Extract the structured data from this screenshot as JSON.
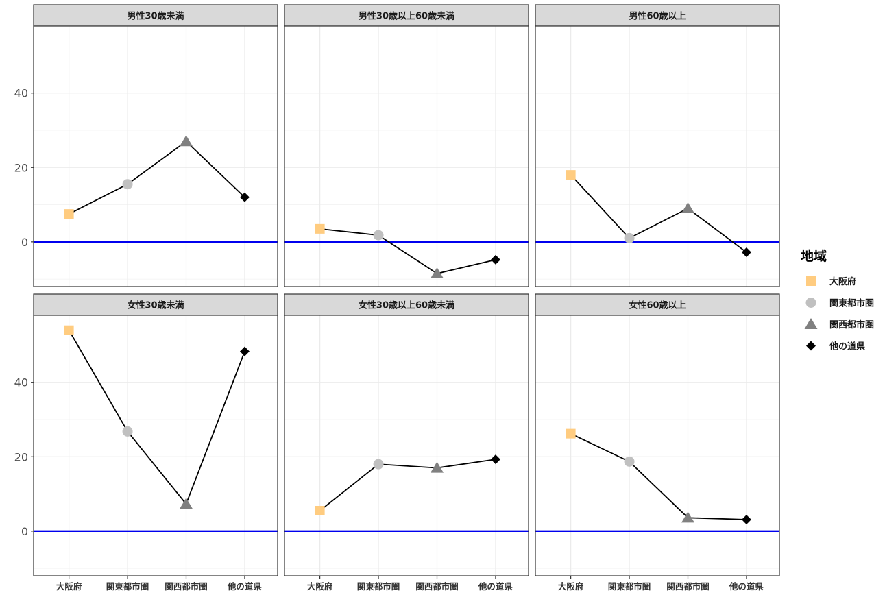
{
  "chart_data": {
    "type": "line",
    "categories": [
      "大阪府",
      "関東都市圏",
      "関西都市圏",
      "他の道県"
    ],
    "ylim": [
      -12,
      58
    ],
    "yticks": [
      0,
      20,
      40
    ],
    "reference_line": {
      "y": 0,
      "color": "#0000ee"
    },
    "grid": true,
    "legend": {
      "title": "地域",
      "placement": "right",
      "entries": [
        {
          "label": "大阪府",
          "shape": "square",
          "color": "#ffcc80"
        },
        {
          "label": "関東都市圏",
          "shape": "circle",
          "color": "#c0c0c0"
        },
        {
          "label": "関西都市圏",
          "shape": "triangle",
          "color": "#808080"
        },
        {
          "label": "他の道県",
          "shape": "diamond",
          "color": "#000000"
        }
      ]
    },
    "panels": [
      {
        "title": "男性30歳未満",
        "values": [
          7.5,
          15.5,
          27,
          12
        ]
      },
      {
        "title": "男性30歳以上60歳未満",
        "values": [
          3.5,
          1.8,
          -8.5,
          -4.8
        ]
      },
      {
        "title": "男性60歳以上",
        "values": [
          18,
          1,
          9,
          -2.8
        ]
      },
      {
        "title": "女性30歳未満",
        "values": [
          54,
          26.8,
          7.3,
          48.3
        ]
      },
      {
        "title": "女性30歳以上60歳未満",
        "values": [
          5.5,
          18,
          17,
          19.3
        ]
      },
      {
        "title": "女性60歳以上",
        "values": [
          26.2,
          18.7,
          3.6,
          3.1
        ]
      }
    ]
  }
}
